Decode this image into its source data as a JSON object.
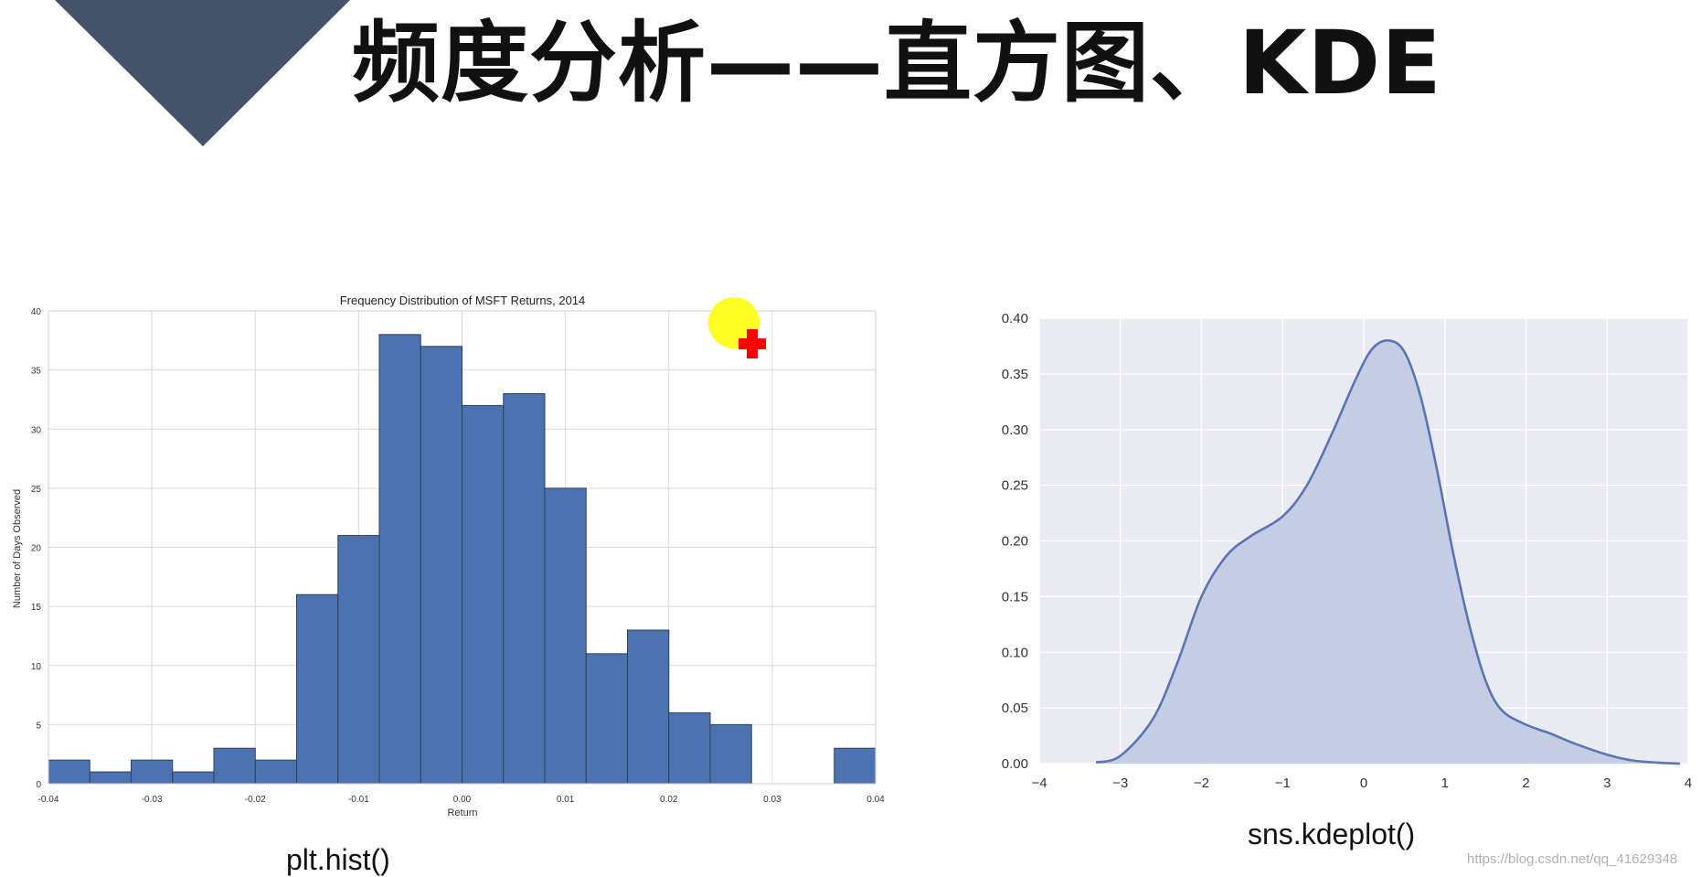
{
  "slide": {
    "title": "频度分析——直方图、KDE",
    "watermark": "https://blog.csdn.net/qq_41629348",
    "colors": {
      "triangle": "#44536a",
      "title": "#111111"
    }
  },
  "chart_data": [
    {
      "type": "bar",
      "caption": "plt.hist()",
      "title": "Frequency Distribution of MSFT Returns, 2014",
      "xlabel": "Return",
      "ylabel": "Number of Days Observed",
      "xlim": [
        -0.04,
        0.04
      ],
      "ylim": [
        0,
        40
      ],
      "x_ticks": [
        -0.04,
        -0.03,
        -0.02,
        -0.01,
        0.0,
        0.01,
        0.02,
        0.03,
        0.04
      ],
      "x_tick_labels": [
        "-0.04",
        "-0.03",
        "-0.02",
        "-0.01",
        "0.00",
        "0.01",
        "0.02",
        "0.03",
        "0.04"
      ],
      "y_ticks": [
        0,
        5,
        10,
        15,
        20,
        25,
        30,
        35,
        40
      ],
      "y_tick_labels": [
        "0",
        "5",
        "10",
        "15",
        "20",
        "25",
        "30",
        "35",
        "40"
      ],
      "bin_edges": [
        -0.04,
        -0.036,
        -0.032,
        -0.028,
        -0.024,
        -0.02,
        -0.016,
        -0.012,
        -0.008,
        -0.004,
        0.0,
        0.004,
        0.008,
        0.012,
        0.016,
        0.02,
        0.024,
        0.028,
        0.032,
        0.036,
        0.04
      ],
      "values": [
        2,
        1,
        2,
        1,
        3,
        2,
        16,
        21,
        38,
        37,
        32,
        33,
        25,
        11,
        13,
        6,
        5,
        0,
        0,
        3
      ],
      "grid": true,
      "colors": {
        "bar": "#4c72b0",
        "bar_edge": "#2f3f58",
        "grid": "#d9d9d9",
        "axes": "#cfcfcf",
        "background": "#ffffff"
      }
    },
    {
      "type": "area",
      "caption": "sns.kdeplot()",
      "xlim": [
        -4,
        4
      ],
      "ylim": [
        0,
        0.4
      ],
      "x_ticks": [
        -4,
        -3,
        -2,
        -1,
        0,
        1,
        2,
        3,
        4
      ],
      "x_tick_labels": [
        "−4",
        "−3",
        "−2",
        "−1",
        "0",
        "1",
        "2",
        "3",
        "4"
      ],
      "y_ticks": [
        0.0,
        0.05,
        0.1,
        0.15,
        0.2,
        0.25,
        0.3,
        0.35,
        0.4
      ],
      "y_tick_labels": [
        "0.00",
        "0.05",
        "0.10",
        "0.15",
        "0.20",
        "0.25",
        "0.30",
        "0.35",
        "0.40"
      ],
      "x": [
        -3.3,
        -3.0,
        -2.6,
        -2.3,
        -2.0,
        -1.7,
        -1.4,
        -1.0,
        -0.7,
        -0.4,
        -0.1,
        0.1,
        0.3,
        0.5,
        0.7,
        0.9,
        1.1,
        1.3,
        1.5,
        1.7,
        2.0,
        2.3,
        2.6,
        3.0,
        3.3,
        3.6,
        3.9
      ],
      "y": [
        0.001,
        0.007,
        0.04,
        0.09,
        0.15,
        0.186,
        0.204,
        0.222,
        0.25,
        0.295,
        0.345,
        0.372,
        0.38,
        0.37,
        0.33,
        0.265,
        0.19,
        0.125,
        0.075,
        0.048,
        0.035,
        0.027,
        0.018,
        0.008,
        0.003,
        0.001,
        0.0
      ],
      "grid": true,
      "colors": {
        "line": "#5b74b4",
        "fill": "#c2cbe2",
        "background": "#eaeaf2",
        "grid": "#ffffff"
      }
    }
  ]
}
